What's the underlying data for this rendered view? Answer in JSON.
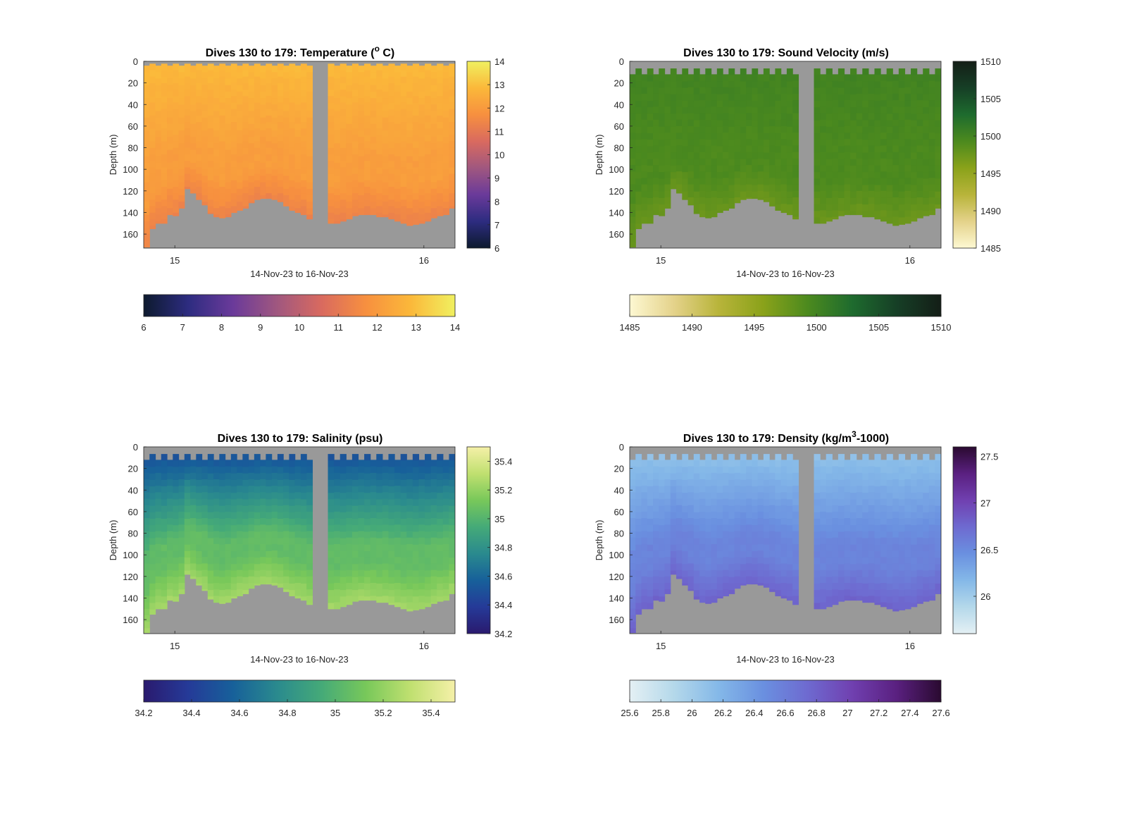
{
  "chart_data": [
    {
      "type": "heatmap",
      "key": "temperature",
      "title": "Dives 130 to 179: Temperature (",
      "title_sup": "o",
      "title_suffix": " C)",
      "xlabel": "14-Nov-23 to 16-Nov-23",
      "ylabel": "Depth (m)",
      "xlim": [
        "2023-11-14T21:00",
        "2023-11-16T03:00"
      ],
      "x_ticks": [
        {
          "t": "2023-11-15T00:00",
          "label": "15"
        },
        {
          "t": "2023-11-16T00:00",
          "label": "16"
        }
      ],
      "ylim": [
        173,
        0
      ],
      "y_ticks": [
        0,
        20,
        40,
        60,
        80,
        100,
        120,
        140,
        160
      ],
      "clim": [
        6,
        14
      ],
      "colorbar_ticks": [
        6,
        7,
        8,
        9,
        10,
        11,
        12,
        13,
        14
      ],
      "horizontal_colorbar_ticks": [
        6,
        7,
        8,
        9,
        10,
        11,
        12,
        13,
        14
      ],
      "colormap": [
        "#0d1a2e",
        "#2d2c80",
        "#6a3a9a",
        "#a0577f",
        "#d96a5f",
        "#f7903f",
        "#fbb83a",
        "#f0f060"
      ],
      "no_data_color": "#999999",
      "surface_gap_depth": 4,
      "surface_value": 12.9,
      "deep_value": 12.1,
      "bottom_value": 11.3
    },
    {
      "type": "heatmap",
      "key": "sound_velocity",
      "title": "Dives 130 to 179: Sound Velocity (m/s)",
      "xlabel": "14-Nov-23 to 16-Nov-23",
      "ylabel": "Depth (m)",
      "xlim": [
        "2023-11-14T21:00",
        "2023-11-16T03:00"
      ],
      "x_ticks": [
        {
          "t": "2023-11-15T00:00",
          "label": "15"
        },
        {
          "t": "2023-11-16T00:00",
          "label": "16"
        }
      ],
      "ylim": [
        173,
        0
      ],
      "y_ticks": [
        0,
        20,
        40,
        60,
        80,
        100,
        120,
        140,
        160
      ],
      "clim": [
        1485,
        1510
      ],
      "colorbar_ticks": [
        1485,
        1490,
        1495,
        1500,
        1505,
        1510
      ],
      "horizontal_colorbar_ticks": [
        1485,
        1490,
        1495,
        1500,
        1505,
        1510
      ],
      "colormap": [
        "#fdf8d2",
        "#e4d28a",
        "#b8b43a",
        "#8aa21a",
        "#4c8a1e",
        "#1e6b2e",
        "#163f26",
        "#141e17"
      ],
      "no_data_color": "#999999",
      "surface_gap_depth": 12,
      "surface_value": 1500.2,
      "deep_value": 1499.3,
      "bottom_value": 1497.5
    },
    {
      "type": "heatmap",
      "key": "salinity",
      "title": "Dives 130 to 179: Salinity (psu)",
      "xlabel": "14-Nov-23 to 16-Nov-23",
      "ylabel": "Depth (m)",
      "xlim": [
        "2023-11-14T21:00",
        "2023-11-16T03:00"
      ],
      "x_ticks": [
        {
          "t": "2023-11-15T00:00",
          "label": "15"
        },
        {
          "t": "2023-11-16T00:00",
          "label": "16"
        }
      ],
      "ylim": [
        173,
        0
      ],
      "y_ticks": [
        0,
        20,
        40,
        60,
        80,
        100,
        120,
        140,
        160
      ],
      "clim": [
        34.2,
        35.5
      ],
      "colorbar_ticks": [
        34.2,
        34.4,
        34.6,
        34.8,
        35,
        35.2,
        35.4
      ],
      "horizontal_colorbar_ticks": [
        34.2,
        34.4,
        34.6,
        34.8,
        35,
        35.2,
        35.4
      ],
      "colormap": [
        "#2a1a6e",
        "#253a98",
        "#17609a",
        "#2a8a8e",
        "#45aa78",
        "#78c85a",
        "#c0e070",
        "#f5f0a8"
      ],
      "no_data_color": "#999999",
      "surface_gap_depth": 12,
      "surface_value": 34.45,
      "deep_value": 35.05,
      "bottom_value": 35.25
    },
    {
      "type": "heatmap",
      "key": "density",
      "title": "Dives 130 to 179: Density (kg/m",
      "title_sup": "3",
      "title_suffix": "-1000)",
      "xlabel": "14-Nov-23 to 16-Nov-23",
      "ylabel": "Depth (m)",
      "xlim": [
        "2023-11-14T21:00",
        "2023-11-16T03:00"
      ],
      "x_ticks": [
        {
          "t": "2023-11-15T00:00",
          "label": "15"
        },
        {
          "t": "2023-11-16T00:00",
          "label": "16"
        }
      ],
      "ylim": [
        173,
        0
      ],
      "y_ticks": [
        0,
        20,
        40,
        60,
        80,
        100,
        120,
        140,
        160
      ],
      "clim": [
        25.6,
        27.6
      ],
      "colorbar_ticks": [
        26,
        26.5,
        27,
        27.5
      ],
      "horizontal_colorbar_ticks": [
        25.6,
        25.8,
        26,
        26.2,
        26.4,
        26.6,
        26.8,
        27,
        27.2,
        27.4,
        27.6
      ],
      "colormap": [
        "#e4f0f4",
        "#b4d8ea",
        "#84b8e8",
        "#6a90e0",
        "#6e6ad0",
        "#7040b0",
        "#5a2080",
        "#2a0a30"
      ],
      "no_data_color": "#999999",
      "surface_gap_depth": 12,
      "surface_value": 26.05,
      "deep_value": 26.55,
      "bottom_value": 26.8
    }
  ],
  "data_gap": {
    "start": "2023-11-15T13:15",
    "end": "2023-11-15T14:45"
  },
  "profile_max_depth_m": [
    172,
    155,
    150,
    150,
    142,
    143,
    136,
    118,
    122,
    128,
    133,
    141,
    144,
    145,
    144,
    140,
    138,
    136,
    131,
    128,
    127,
    127,
    128,
    130,
    134,
    138,
    140,
    142,
    146,
    150,
    150,
    148,
    146,
    143,
    142,
    142,
    142,
    144,
    144,
    146,
    148,
    150,
    152,
    151,
    150,
    148,
    145,
    143,
    142,
    136
  ]
}
